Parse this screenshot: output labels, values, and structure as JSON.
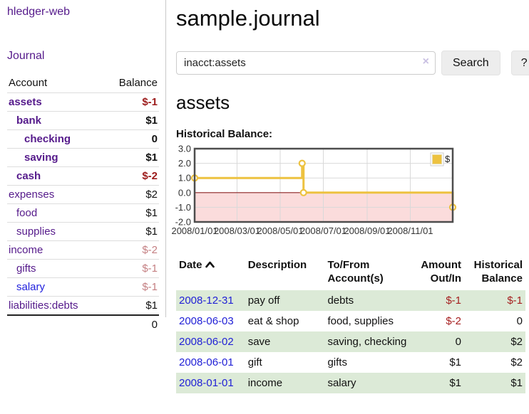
{
  "app": {
    "title": "hledger-web"
  },
  "sidebar": {
    "journal_link": "Journal",
    "accounts": {
      "header_account": "Account",
      "header_balance": "Balance",
      "rows": [
        {
          "name": "assets",
          "balance": "$-1"
        },
        {
          "name": "bank",
          "balance": "$1"
        },
        {
          "name": "checking",
          "balance": "0"
        },
        {
          "name": "saving",
          "balance": "$1"
        },
        {
          "name": "cash",
          "balance": "$-2"
        },
        {
          "name": "expenses",
          "balance": "$2"
        },
        {
          "name": "food",
          "balance": "$1"
        },
        {
          "name": "supplies",
          "balance": "$1"
        },
        {
          "name": "income",
          "balance": "$-2"
        },
        {
          "name": "gifts",
          "balance": "$-1"
        },
        {
          "name": "salary",
          "balance": "$-1"
        },
        {
          "name": "liabilities:debts",
          "balance": "$1"
        }
      ],
      "total_balance": "0"
    }
  },
  "header": {
    "title": "sample.journal"
  },
  "search": {
    "value": "inacct:assets",
    "clear_icon": "×",
    "search_button": "Search",
    "help_button": "?"
  },
  "account_view": {
    "title": "assets",
    "chart_heading": "Historical Balance:"
  },
  "chart_data": {
    "type": "line",
    "step": true,
    "title": "Historical Balance:",
    "legend": "$",
    "series_color": "#edc240",
    "negative_region_color": "#fbdcdc",
    "zero_line_color": "#8b2222",
    "grid_color": "#d9d9d9",
    "border_color": "#4d4d4d",
    "ylim": [
      -2,
      3
    ],
    "y_ticks": [
      "3.0",
      "2.0",
      "1.0",
      "0.0",
      "-1.0",
      "-2.0"
    ],
    "x_ticks": [
      "2008/01/01",
      "2008/03/01",
      "2008/05/01",
      "2008/07/01",
      "2008/09/01",
      "2008/11/01"
    ],
    "x_span_days": 365,
    "points": [
      {
        "date": "2008/01/01",
        "value": 1
      },
      {
        "date": "2008/06/01",
        "value": 2
      },
      {
        "date": "2008/06/03",
        "value": 0
      },
      {
        "date": "2008/12/31",
        "value": -1
      }
    ]
  },
  "register": {
    "headers": {
      "date": "Date",
      "description": "Description",
      "accounts": "To/From Account(s)",
      "amount": "Amount Out/In",
      "balance": "Historical Balance"
    },
    "rows": [
      {
        "date": "2008-12-31",
        "description": "pay off",
        "accounts": "debts",
        "amount": "$-1",
        "balance": "$-1"
      },
      {
        "date": "2008-06-03",
        "description": "eat & shop",
        "accounts": "food, supplies",
        "amount": "$-2",
        "balance": "0"
      },
      {
        "date": "2008-06-02",
        "description": "save",
        "accounts": "saving, checking",
        "amount": "0",
        "balance": "$2"
      },
      {
        "date": "2008-06-01",
        "description": "gift",
        "accounts": "gifts",
        "amount": "$1",
        "balance": "$2"
      },
      {
        "date": "2008-01-01",
        "description": "income",
        "accounts": "salary",
        "amount": "$1",
        "balance": "$1"
      }
    ]
  }
}
